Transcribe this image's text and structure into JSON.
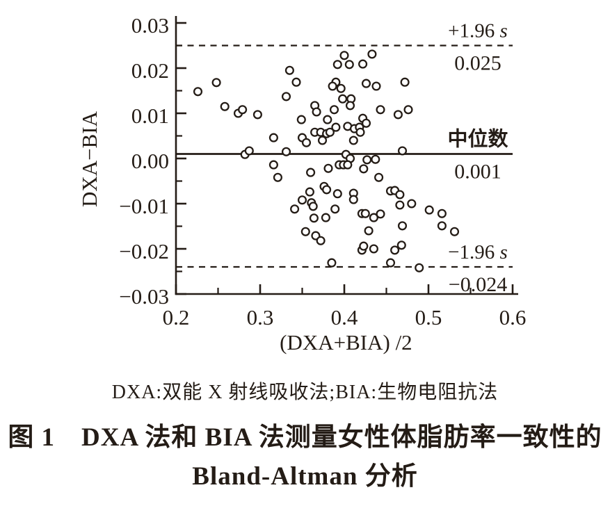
{
  "figure": {
    "caption": "DXA:双能 X 射线吸收法;BIA:生物电阻抗法",
    "title_line1": "图 1　DXA 法和 BIA 法测量女性体脂肪率一致性的",
    "title_line2": "Bland-Altman 分析"
  },
  "chart_data": {
    "type": "scatter",
    "title": "图 1 DXA 法和 BIA 法测量女性体脂肪率一致性的 Bland-Altman 分析",
    "xlabel": "(DXA+BIA) /2",
    "ylabel": "DXA−BIA",
    "xlim": [
      0.2,
      0.6
    ],
    "ylim": [
      -0.03,
      0.03
    ],
    "grid": false,
    "x_ticks": [
      0.2,
      0.3,
      0.4,
      0.5,
      0.6
    ],
    "x_tick_labels": [
      "0.2",
      "0.3",
      "0.4",
      "0.5",
      "0.6"
    ],
    "x_minor_ticks": [
      0.25,
      0.35,
      0.45,
      0.55
    ],
    "y_ticks": [
      0.03,
      0.02,
      0.01,
      0.0,
      -0.01,
      -0.02,
      -0.03
    ],
    "y_tick_labels": [
      "0.03",
      "0.02",
      "0.01",
      "0.00",
      "−0.01",
      "−0.02",
      "−0.03"
    ],
    "y_minor_ticks": [
      0.025,
      0.015,
      0.005,
      -0.005,
      -0.015,
      -0.025
    ],
    "marker": {
      "shape": "open-circle",
      "color": "#241c16"
    },
    "reference_lines": [
      {
        "name": "upper-loa",
        "label": "+1.96 s",
        "value_label": "0.025",
        "value": 0.025,
        "style": "dashed"
      },
      {
        "name": "median",
        "label": "中位数",
        "value_label": "0.001",
        "value": 0.001,
        "style": "solid"
      },
      {
        "name": "lower-loa",
        "label": "−1.96 s",
        "value_label": "−0.024",
        "value": -0.024,
        "style": "dashed"
      }
    ],
    "points": [
      [
        0.226,
        0.0148
      ],
      [
        0.248,
        0.0168
      ],
      [
        0.258,
        0.0115
      ],
      [
        0.274,
        0.01
      ],
      [
        0.279,
        0.0108
      ],
      [
        0.297,
        0.0097
      ],
      [
        0.335,
        0.0195
      ],
      [
        0.343,
        0.0169
      ],
      [
        0.331,
        0.0137
      ],
      [
        0.349,
        0.0086
      ],
      [
        0.365,
        0.0117
      ],
      [
        0.367,
        0.0103
      ],
      [
        0.39,
        0.0169
      ],
      [
        0.386,
        0.016
      ],
      [
        0.396,
        0.0155
      ],
      [
        0.4,
        0.0228
      ],
      [
        0.392,
        0.0208
      ],
      [
        0.406,
        0.0208
      ],
      [
        0.398,
        0.0132
      ],
      [
        0.408,
        0.0132
      ],
      [
        0.388,
        0.0108
      ],
      [
        0.38,
        0.0086
      ],
      [
        0.39,
        0.0069
      ],
      [
        0.365,
        0.0058
      ],
      [
        0.372,
        0.0058
      ],
      [
        0.379,
        0.0055
      ],
      [
        0.383,
        0.0058
      ],
      [
        0.374,
        0.004
      ],
      [
        0.35,
        0.0046
      ],
      [
        0.355,
        0.0035
      ],
      [
        0.316,
        0.0046
      ],
      [
        0.331,
        0.0015
      ],
      [
        0.282,
        0.0009
      ],
      [
        0.287,
        0.0017
      ],
      [
        0.422,
        0.0209
      ],
      [
        0.433,
        0.0231
      ],
      [
        0.426,
        0.0166
      ],
      [
        0.438,
        0.016
      ],
      [
        0.472,
        0.0169
      ],
      [
        0.407,
        0.0117
      ],
      [
        0.443,
        0.0108
      ],
      [
        0.464,
        0.0097
      ],
      [
        0.476,
        0.0108
      ],
      [
        0.422,
        0.0089
      ],
      [
        0.426,
        0.0078
      ],
      [
        0.404,
        0.0071
      ],
      [
        0.412,
        0.0066
      ],
      [
        0.418,
        0.0069
      ],
      [
        0.419,
        0.0058
      ],
      [
        0.411,
        0.004
      ],
      [
        0.469,
        0.0017
      ],
      [
        0.402,
        0.0009
      ],
      [
        0.407,
        0.0
      ],
      [
        0.394,
        -0.0014
      ],
      [
        0.399,
        -0.0014
      ],
      [
        0.404,
        -0.0014
      ],
      [
        0.316,
        -0.0014
      ],
      [
        0.321,
        -0.0042
      ],
      [
        0.36,
        -0.0031
      ],
      [
        0.381,
        -0.0022
      ],
      [
        0.359,
        -0.0074
      ],
      [
        0.376,
        -0.0062
      ],
      [
        0.379,
        -0.0069
      ],
      [
        0.392,
        -0.0078
      ],
      [
        0.35,
        -0.0092
      ],
      [
        0.361,
        -0.0098
      ],
      [
        0.363,
        -0.0106
      ],
      [
        0.341,
        -0.0112
      ],
      [
        0.389,
        -0.0112
      ],
      [
        0.364,
        -0.0132
      ],
      [
        0.378,
        -0.0131
      ],
      [
        0.354,
        -0.0162
      ],
      [
        0.366,
        -0.0171
      ],
      [
        0.372,
        -0.0182
      ],
      [
        0.385,
        -0.0231
      ],
      [
        0.427,
        -0.0003
      ],
      [
        0.437,
        -0.0002
      ],
      [
        0.423,
        -0.0023
      ],
      [
        0.441,
        -0.0042
      ],
      [
        0.455,
        -0.0072
      ],
      [
        0.46,
        -0.0071
      ],
      [
        0.466,
        -0.008
      ],
      [
        0.466,
        -0.0103
      ],
      [
        0.48,
        -0.01
      ],
      [
        0.411,
        -0.0077
      ],
      [
        0.411,
        -0.0091
      ],
      [
        0.421,
        -0.0122
      ],
      [
        0.425,
        -0.0122
      ],
      [
        0.435,
        -0.0131
      ],
      [
        0.443,
        -0.0123
      ],
      [
        0.501,
        -0.0114
      ],
      [
        0.516,
        -0.0122
      ],
      [
        0.429,
        -0.016
      ],
      [
        0.469,
        -0.0149
      ],
      [
        0.516,
        -0.0149
      ],
      [
        0.531,
        -0.0162
      ],
      [
        0.421,
        -0.0203
      ],
      [
        0.423,
        -0.0194
      ],
      [
        0.435,
        -0.02
      ],
      [
        0.46,
        -0.0203
      ],
      [
        0.468,
        -0.0192
      ],
      [
        0.455,
        -0.0231
      ],
      [
        0.489,
        -0.0242
      ]
    ]
  }
}
